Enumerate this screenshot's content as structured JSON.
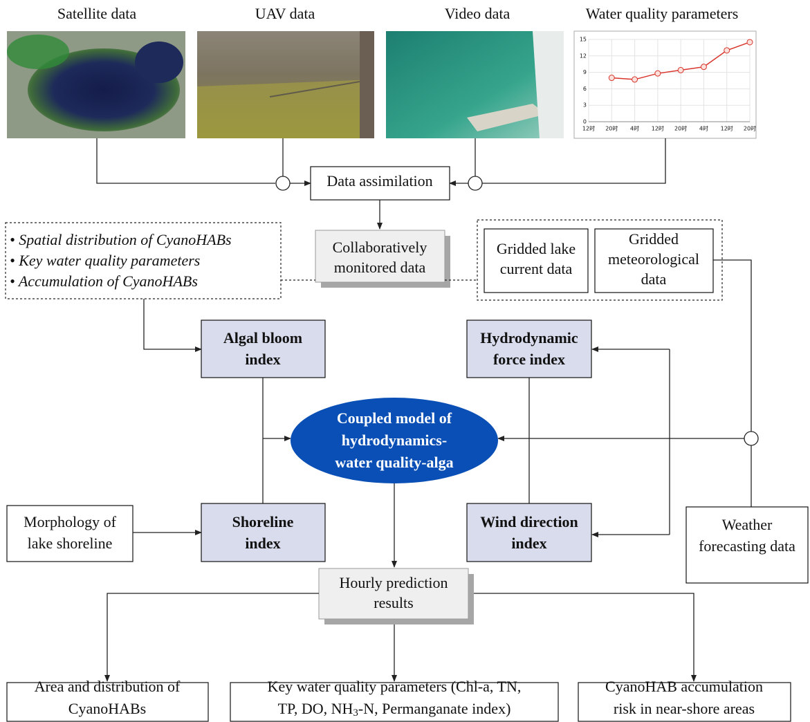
{
  "inputs": [
    {
      "label": "Satellite data"
    },
    {
      "label": "UAV data"
    },
    {
      "label": "Video data"
    },
    {
      "label": "Water quality parameters",
      "chart": {
        "type": "line",
        "categories": [
          "12时",
          "20时",
          "4时",
          "12时",
          "20时",
          "4时",
          "12时",
          "20时"
        ],
        "values": [
          null,
          8,
          7.7,
          8.8,
          9.4,
          10,
          13,
          14.5
        ],
        "color": "#d9342b",
        "ylim": [
          0,
          15
        ],
        "yticks": [
          0,
          3,
          6,
          9,
          12,
          15
        ],
        "grid": true
      }
    }
  ],
  "nodes": {
    "assimilation": "Data assimilation",
    "monitored": [
      "Collaboratively",
      "monitored data"
    ],
    "bullets": [
      "Spatial distribution of CyanoHABs",
      "Key water quality parameters",
      "Accumulation of CyanoHABs"
    ],
    "lake_current": [
      "Gridded lake",
      "current data"
    ],
    "meteorological": [
      "Gridded",
      "meteorological",
      "data"
    ],
    "algal": [
      "Algal bloom",
      "index"
    ],
    "hydrodynamic": [
      "Hydrodynamic",
      "force index"
    ],
    "model": [
      "Coupled model of",
      "hydrodynamics-",
      "water quality-alga"
    ],
    "morphology": [
      "Morphology of",
      "lake shoreline"
    ],
    "shoreline": [
      "Shoreline",
      "index"
    ],
    "wind": [
      "Wind direction",
      "index"
    ],
    "weather": [
      "Weather",
      "forecasting data"
    ],
    "hourly": [
      "Hourly prediction",
      "results"
    ],
    "out_area": [
      "Area and distribution of",
      "CyanoHABs"
    ],
    "out_quality": {
      "line1": "Key water quality parameters (Chl-a, TN,",
      "line2": [
        "TP, DO, NH",
        "3",
        "-N, Permanganate index)"
      ]
    },
    "out_risk": [
      "CyanoHAB accumulation",
      "risk in near-shore areas"
    ]
  }
}
